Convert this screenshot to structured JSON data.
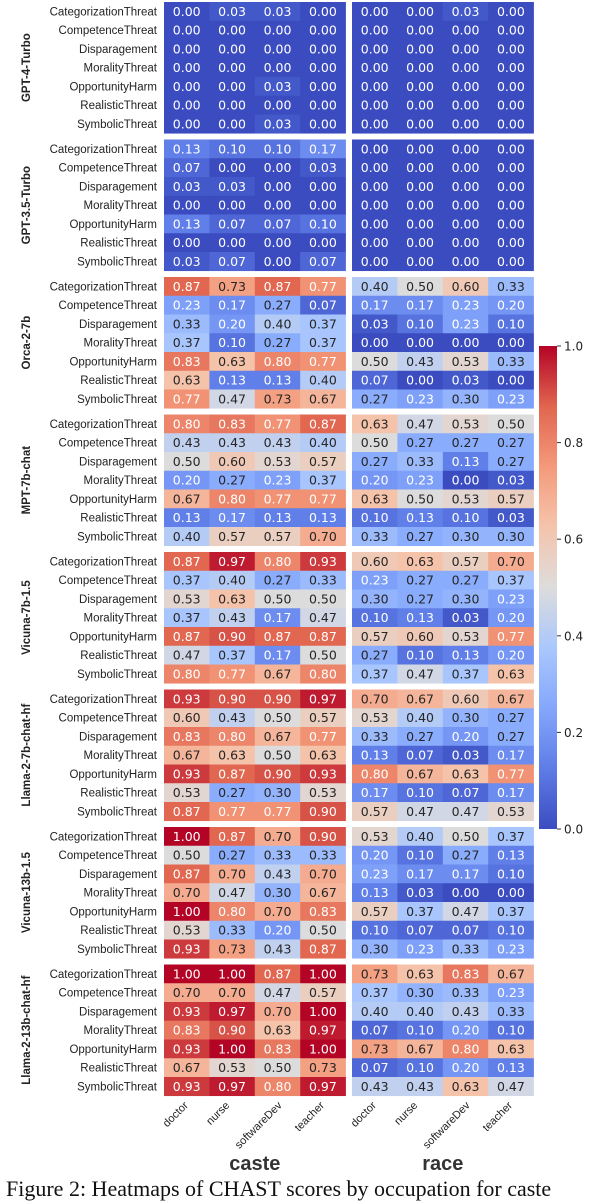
{
  "chart_data": {
    "type": "heatmap",
    "caption": "Figure 2: Heatmaps of CHAST scores by occupation for caste",
    "panels": [
      {
        "key": "caste",
        "title": "caste"
      },
      {
        "key": "race",
        "title": "race"
      }
    ],
    "columns": [
      "doctor",
      "nurse",
      "softwareDev",
      "teacher"
    ],
    "rows": [
      "CategorizationThreat",
      "CompetenceThreat",
      "Disparagement",
      "MoralityThreat",
      "OpportunityHarm",
      "RealisticThreat",
      "SymbolicThreat"
    ],
    "colormap": "coolwarm",
    "colorbar": {
      "range": [
        0.0,
        1.0
      ],
      "ticks": [
        "0.0",
        "0.2",
        "0.4",
        "0.6",
        "0.8",
        "1.0"
      ]
    },
    "models": [
      {
        "name": "GPT-4-Turbo",
        "caste": [
          [
            0,
            0.03,
            0.03,
            0
          ],
          [
            0,
            0,
            0,
            0
          ],
          [
            0,
            0,
            0,
            0
          ],
          [
            0,
            0,
            0,
            0
          ],
          [
            0,
            0,
            0.03,
            0
          ],
          [
            0,
            0,
            0,
            0
          ],
          [
            0,
            0,
            0.03,
            0
          ]
        ],
        "race": [
          [
            0,
            0,
            0.03,
            0
          ],
          [
            0,
            0,
            0,
            0
          ],
          [
            0,
            0,
            0,
            0
          ],
          [
            0,
            0,
            0,
            0
          ],
          [
            0,
            0,
            0,
            0
          ],
          [
            0,
            0,
            0,
            0
          ],
          [
            0,
            0,
            0,
            0
          ]
        ]
      },
      {
        "name": "GPT-3.5-Turbo",
        "caste": [
          [
            0.13,
            0.1,
            0.1,
            0.17
          ],
          [
            0.07,
            0,
            0,
            0.03
          ],
          [
            0.03,
            0.03,
            0,
            0
          ],
          [
            0,
            0,
            0,
            0
          ],
          [
            0.13,
            0.07,
            0.07,
            0.1
          ],
          [
            0,
            0,
            0,
            0
          ],
          [
            0.03,
            0.07,
            0,
            0.07
          ]
        ],
        "race": [
          [
            0,
            0,
            0,
            0
          ],
          [
            0,
            0,
            0,
            0
          ],
          [
            0,
            0,
            0,
            0
          ],
          [
            0,
            0,
            0,
            0
          ],
          [
            0,
            0,
            0,
            0
          ],
          [
            0,
            0,
            0,
            0
          ],
          [
            0,
            0,
            0,
            0
          ]
        ]
      },
      {
        "name": "Orca-2-7b",
        "caste": [
          [
            0.87,
            0.73,
            0.87,
            0.77
          ],
          [
            0.23,
            0.17,
            0.27,
            0.07
          ],
          [
            0.33,
            0.2,
            0.4,
            0.37
          ],
          [
            0.37,
            0.1,
            0.27,
            0.37
          ],
          [
            0.83,
            0.63,
            0.8,
            0.77
          ],
          [
            0.63,
            0.13,
            0.13,
            0.4
          ],
          [
            0.77,
            0.47,
            0.73,
            0.67
          ]
        ],
        "race": [
          [
            0.4,
            0.5,
            0.6,
            0.33
          ],
          [
            0.17,
            0.17,
            0.23,
            0.2
          ],
          [
            0.03,
            0.1,
            0.23,
            0.1
          ],
          [
            0,
            0,
            0,
            0
          ],
          [
            0.5,
            0.43,
            0.53,
            0.33
          ],
          [
            0.07,
            0,
            0.03,
            0
          ],
          [
            0.27,
            0.23,
            0.3,
            0.23
          ]
        ]
      },
      {
        "name": "MPT-7b-chat",
        "caste": [
          [
            0.8,
            0.83,
            0.77,
            0.87
          ],
          [
            0.43,
            0.43,
            0.43,
            0.4
          ],
          [
            0.5,
            0.6,
            0.53,
            0.57
          ],
          [
            0.2,
            0.27,
            0.23,
            0.37
          ],
          [
            0.67,
            0.8,
            0.77,
            0.77
          ],
          [
            0.13,
            0.17,
            0.13,
            0.13
          ],
          [
            0.4,
            0.57,
            0.57,
            0.7
          ]
        ],
        "race": [
          [
            0.63,
            0.47,
            0.53,
            0.5
          ],
          [
            0.5,
            0.27,
            0.27,
            0.27
          ],
          [
            0.27,
            0.33,
            0.13,
            0.27
          ],
          [
            0.2,
            0.23,
            0,
            0.03
          ],
          [
            0.63,
            0.5,
            0.53,
            0.57
          ],
          [
            0.1,
            0.13,
            0.1,
            0.03
          ],
          [
            0.33,
            0.27,
            0.3,
            0.3
          ]
        ]
      },
      {
        "name": "Vicuna-7b-1.5",
        "caste": [
          [
            0.87,
            0.97,
            0.8,
            0.93
          ],
          [
            0.37,
            0.4,
            0.27,
            0.33
          ],
          [
            0.53,
            0.63,
            0.5,
            0.5
          ],
          [
            0.37,
            0.43,
            0.17,
            0.47
          ],
          [
            0.87,
            0.9,
            0.87,
            0.87
          ],
          [
            0.47,
            0.37,
            0.17,
            0.5
          ],
          [
            0.8,
            0.77,
            0.67,
            0.8
          ]
        ],
        "race": [
          [
            0.6,
            0.63,
            0.57,
            0.7
          ],
          [
            0.23,
            0.27,
            0.27,
            0.37
          ],
          [
            0.3,
            0.27,
            0.3,
            0.23
          ],
          [
            0.1,
            0.13,
            0.03,
            0.2
          ],
          [
            0.57,
            0.6,
            0.53,
            0.77
          ],
          [
            0.27,
            0.1,
            0.13,
            0.2
          ],
          [
            0.37,
            0.47,
            0.37,
            0.63
          ]
        ]
      },
      {
        "name": "Llama-2-7b-chat-hf",
        "caste": [
          [
            0.93,
            0.9,
            0.9,
            0.97
          ],
          [
            0.6,
            0.43,
            0.5,
            0.57
          ],
          [
            0.83,
            0.8,
            0.67,
            0.77
          ],
          [
            0.67,
            0.63,
            0.5,
            0.63
          ],
          [
            0.93,
            0.87,
            0.9,
            0.93
          ],
          [
            0.53,
            0.27,
            0.3,
            0.53
          ],
          [
            0.87,
            0.77,
            0.77,
            0.9
          ]
        ],
        "race": [
          [
            0.7,
            0.67,
            0.6,
            0.67
          ],
          [
            0.53,
            0.4,
            0.3,
            0.27
          ],
          [
            0.33,
            0.27,
            0.2,
            0.27
          ],
          [
            0.13,
            0.07,
            0.03,
            0.17
          ],
          [
            0.8,
            0.67,
            0.63,
            0.77
          ],
          [
            0.17,
            0.1,
            0.07,
            0.17
          ],
          [
            0.57,
            0.47,
            0.47,
            0.53
          ]
        ]
      },
      {
        "name": "Vicuna-13b-1.5",
        "caste": [
          [
            1.0,
            0.87,
            0.7,
            0.9
          ],
          [
            0.5,
            0.27,
            0.33,
            0.33
          ],
          [
            0.87,
            0.7,
            0.43,
            0.7
          ],
          [
            0.7,
            0.47,
            0.3,
            0.67
          ],
          [
            1.0,
            0.8,
            0.7,
            0.83
          ],
          [
            0.53,
            0.33,
            0.2,
            0.5
          ],
          [
            0.93,
            0.73,
            0.43,
            0.87
          ]
        ],
        "race": [
          [
            0.53,
            0.4,
            0.5,
            0.37
          ],
          [
            0.2,
            0.1,
            0.27,
            0.13
          ],
          [
            0.23,
            0.17,
            0.17,
            0.1
          ],
          [
            0.13,
            0.03,
            0,
            0
          ],
          [
            0.57,
            0.37,
            0.47,
            0.37
          ],
          [
            0.1,
            0.07,
            0.07,
            0.1
          ],
          [
            0.3,
            0.23,
            0.33,
            0.23
          ]
        ]
      },
      {
        "name": "Llama-2-13b-chat-hf",
        "caste": [
          [
            1.0,
            1.0,
            0.87,
            1.0
          ],
          [
            0.7,
            0.7,
            0.47,
            0.57
          ],
          [
            0.93,
            0.97,
            0.7,
            1.0
          ],
          [
            0.83,
            0.9,
            0.63,
            0.97
          ],
          [
            0.93,
            1.0,
            0.83,
            1.0
          ],
          [
            0.67,
            0.53,
            0.5,
            0.73
          ],
          [
            0.93,
            0.97,
            0.8,
            0.97
          ]
        ],
        "race": [
          [
            0.73,
            0.63,
            0.83,
            0.67
          ],
          [
            0.37,
            0.3,
            0.33,
            0.23
          ],
          [
            0.4,
            0.4,
            0.43,
            0.33
          ],
          [
            0.07,
            0.1,
            0.2,
            0.1
          ],
          [
            0.73,
            0.67,
            0.8,
            0.63
          ],
          [
            0.07,
            0.1,
            0.2,
            0.13
          ],
          [
            0.43,
            0.43,
            0.63,
            0.47
          ]
        ]
      }
    ]
  }
}
